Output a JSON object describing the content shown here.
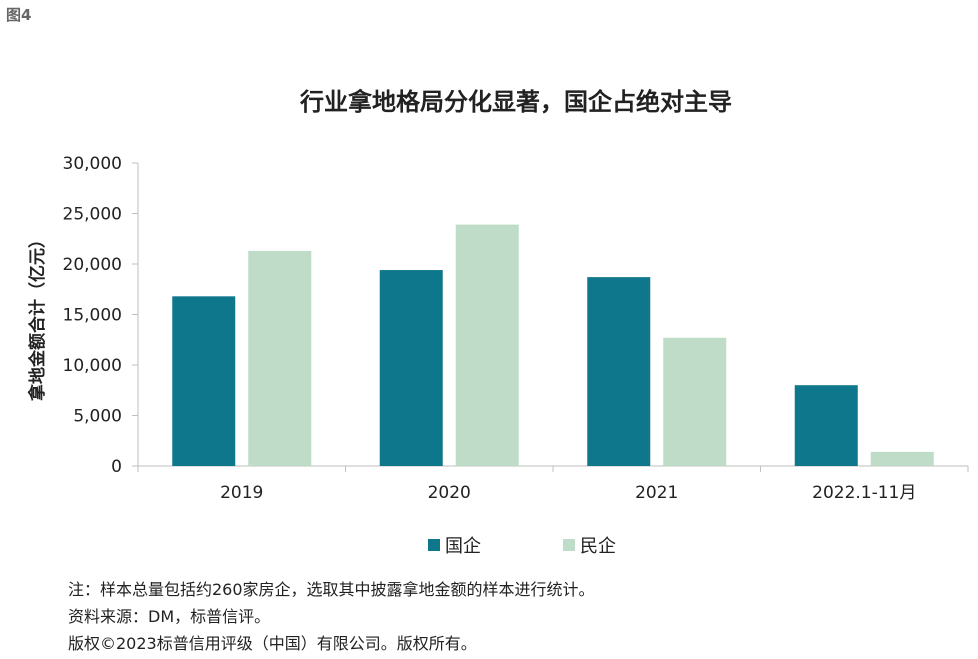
{
  "figure_label": "图4",
  "colors": {
    "soe": "#0e778c",
    "private": "#bfdcc9",
    "axis": "#bfbfbf",
    "text": "#222222"
  },
  "chart_data": {
    "type": "bar",
    "title": "行业拿地格局分化显著，国企占绝对主导",
    "xlabel": "",
    "ylabel": "拿地金额合计（亿元）",
    "ylim": [
      0,
      30000
    ],
    "yticks": [
      0,
      5000,
      10000,
      15000,
      20000,
      25000,
      30000
    ],
    "ytick_labels": [
      "0",
      "5,000",
      "10,000",
      "15,000",
      "20,000",
      "25,000",
      "30,000"
    ],
    "categories": [
      "2019",
      "2020",
      "2021",
      "2022.1-11月"
    ],
    "series": [
      {
        "name": "国企",
        "values": [
          16800,
          19400,
          18700,
          8000
        ]
      },
      {
        "name": "民企",
        "values": [
          21300,
          23900,
          12700,
          1400
        ]
      }
    ],
    "grid": false,
    "legend": "bottom-center"
  },
  "notes": [
    "注：样本总量包括约260家房企，选取其中披露拿地金额的样本进行统计。",
    "资料来源：DM，标普信评。",
    "版权©2023标普信用评级（中国）有限公司。版权所有。"
  ]
}
